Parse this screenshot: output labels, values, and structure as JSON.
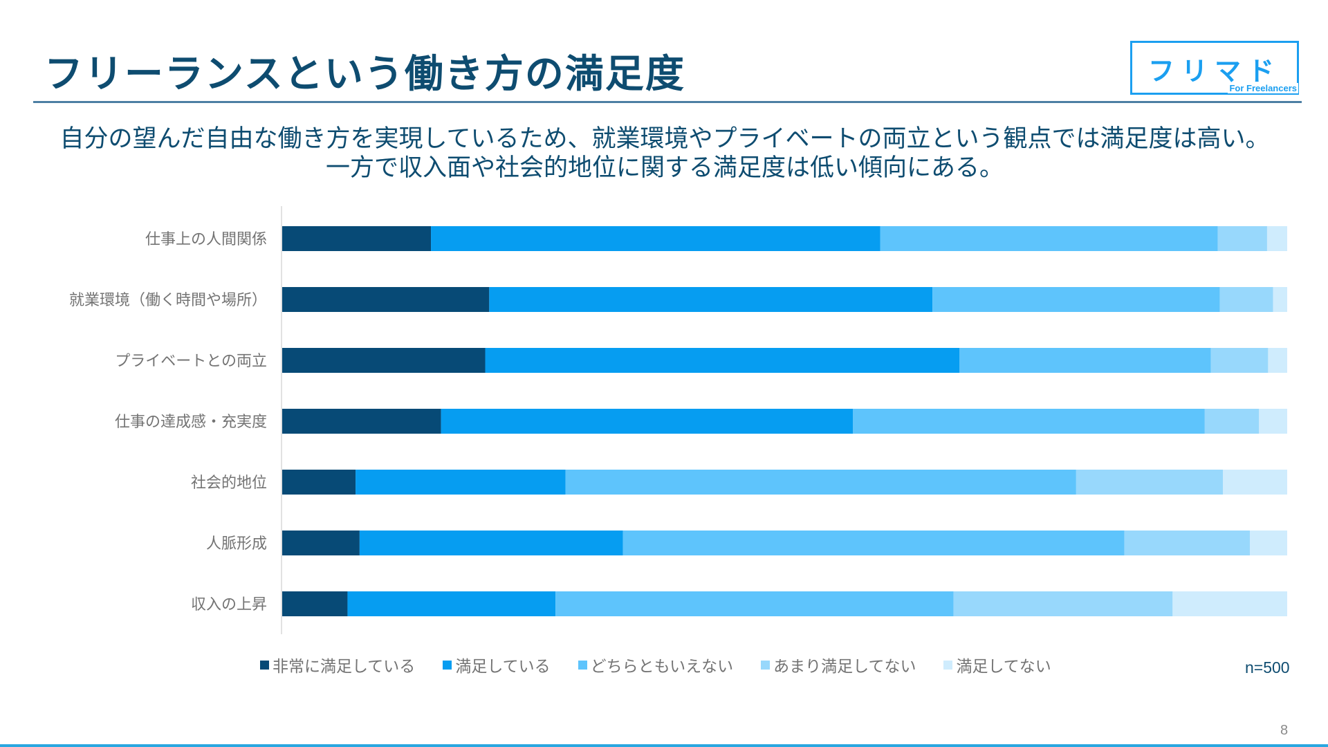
{
  "title": "フリーランスという働き方の満足度",
  "logo": {
    "main": "フリマド",
    "sub": "For Freelancers"
  },
  "subtitle": {
    "line1": "自分の望んだ自由な働き方を実現しているため、就業環境やプライベートの両立という観点では満足度は高い。",
    "line2": "一方で収入面や社会的地位に関する満足度は低い傾向にある。"
  },
  "sample_size": "n=500",
  "page_number": "8",
  "chart_data": {
    "type": "bar",
    "orientation": "horizontal",
    "stacked": true,
    "normalized_percent": true,
    "xlim": [
      0,
      100
    ],
    "grid": false,
    "legend_position": "bottom",
    "categories": [
      "仕事上の人間関係",
      "就業環境（働く時間や場所）",
      "プライベートとの両立",
      "仕事の達成感・充実度",
      "社会的地位",
      "人脈形成",
      "収入の上昇"
    ],
    "series": [
      {
        "name": "非常に満足している",
        "color": "#074a76",
        "values": [
          14.8,
          20.6,
          20.2,
          15.8,
          7.3,
          7.7,
          6.5
        ]
      },
      {
        "name": "満足している",
        "color": "#069df1",
        "values": [
          44.7,
          44.1,
          47.2,
          41.0,
          20.9,
          26.2,
          20.7
        ]
      },
      {
        "name": "どちらともいえない",
        "color": "#5ec4fc",
        "values": [
          33.6,
          28.6,
          25.0,
          35.0,
          50.8,
          49.9,
          39.6
        ]
      },
      {
        "name": "あまり満足してない",
        "color": "#98d8fc",
        "values": [
          4.9,
          5.3,
          5.7,
          5.4,
          14.6,
          12.5,
          21.8
        ]
      },
      {
        "name": "満足してない",
        "color": "#cfecfd",
        "values": [
          2.0,
          1.4,
          1.9,
          2.8,
          6.4,
          3.7,
          11.4
        ]
      }
    ]
  }
}
